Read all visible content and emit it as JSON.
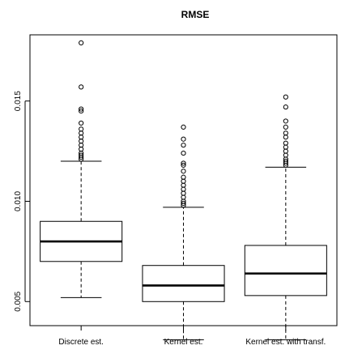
{
  "chart_data": {
    "type": "boxplot",
    "title": "RMSE",
    "xlabel": "",
    "ylabel": "",
    "ylim": [
      0.0038,
      0.0183
    ],
    "yticks": [
      0.005,
      0.01,
      0.015
    ],
    "ytick_labels": [
      "0.005",
      "0.010",
      "0.015"
    ],
    "grid": false,
    "categories": [
      "Discrete est.",
      "Kernel est.",
      "Kernel est. with transf."
    ],
    "boxes": [
      {
        "whisker_low": 0.0052,
        "q1": 0.007,
        "median": 0.008,
        "q3": 0.009,
        "whisker_high": 0.012,
        "outliers": [
          0.0121,
          0.0122,
          0.0123,
          0.0124,
          0.0126,
          0.0128,
          0.013,
          0.0132,
          0.0134,
          0.0136,
          0.0139,
          0.0145,
          0.0146,
          0.0157,
          0.0179
        ]
      },
      {
        "whisker_low": 0.0031,
        "q1": 0.005,
        "median": 0.0058,
        "q3": 0.0068,
        "whisker_high": 0.0097,
        "outliers": [
          0.0098,
          0.0099,
          0.01,
          0.0102,
          0.0104,
          0.0106,
          0.0108,
          0.011,
          0.0112,
          0.0115,
          0.0118,
          0.0119,
          0.0124,
          0.0128,
          0.0131,
          0.0137
        ]
      },
      {
        "whisker_low": 0.0031,
        "q1": 0.0053,
        "median": 0.0064,
        "q3": 0.0078,
        "whisker_high": 0.0117,
        "outliers": [
          0.0118,
          0.0119,
          0.012,
          0.0121,
          0.0123,
          0.0125,
          0.0127,
          0.0129,
          0.0132,
          0.0134,
          0.0137,
          0.014,
          0.0147,
          0.0152
        ]
      }
    ]
  }
}
